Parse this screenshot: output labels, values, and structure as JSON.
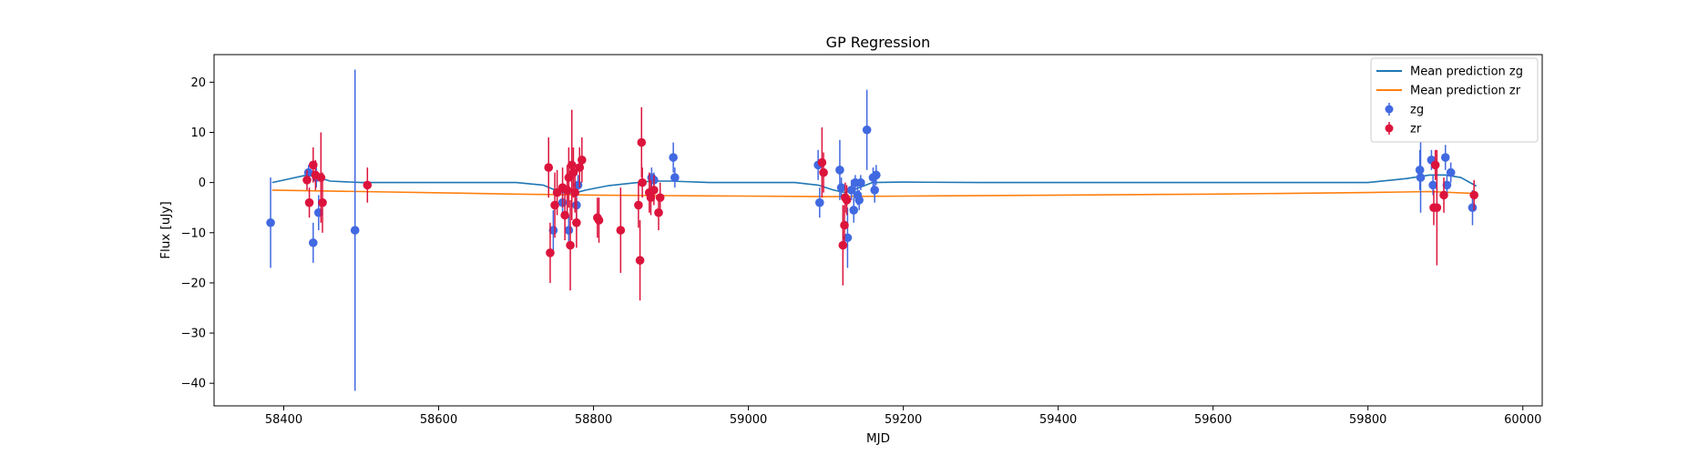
{
  "chart_data": {
    "type": "scatter",
    "title": "GP Regression",
    "xlabel": "MJD",
    "ylabel": "Flux [uJy]",
    "xlim": [
      58310,
      60025
    ],
    "ylim": [
      -44.5,
      25.5
    ],
    "xticks": [
      58400,
      58600,
      58800,
      59000,
      59200,
      59400,
      59600,
      59800,
      60000
    ],
    "yticks": [
      -40,
      -30,
      -20,
      -10,
      0,
      10,
      20
    ],
    "grid": false,
    "legend_position": "top-right",
    "legend": [
      "Mean prediction zg",
      "Mean prediction zr",
      "zg",
      "zr"
    ],
    "colors": {
      "line_zg": "#1f77b4",
      "line_zr": "#ff7f0e",
      "points_zg": "#4169e1",
      "points_zr": "#dc143c"
    },
    "lines": [
      {
        "name": "Mean prediction zg",
        "x": [
          58385,
          58400,
          58430,
          58445,
          58460,
          58500,
          58600,
          58700,
          58735,
          58755,
          58770,
          58790,
          58820,
          58850,
          58875,
          58900,
          58950,
          59000,
          59060,
          59090,
          59110,
          59125,
          59140,
          59160,
          59200,
          59300,
          59400,
          59500,
          59600,
          59700,
          59800,
          59850,
          59880,
          59900,
          59920,
          59940
        ],
        "y": [
          0.0,
          0.5,
          1.5,
          1.0,
          0.3,
          0.0,
          0.0,
          0.0,
          -0.5,
          -1.8,
          -2.3,
          -1.5,
          -0.6,
          -0.1,
          0.3,
          0.3,
          0.0,
          0.0,
          0.0,
          -0.5,
          -1.5,
          -2.0,
          -1.2,
          0.0,
          0.1,
          0.0,
          0.0,
          0.0,
          0.0,
          0.0,
          0.0,
          0.8,
          1.5,
          1.5,
          1.0,
          -0.7
        ]
      },
      {
        "name": "Mean prediction zr",
        "x": [
          58385,
          58500,
          58700,
          58800,
          58900,
          59000,
          59100,
          59200,
          59400,
          59600,
          59800,
          59880,
          59940
        ],
        "y": [
          -1.5,
          -1.8,
          -2.3,
          -2.5,
          -2.6,
          -2.7,
          -2.8,
          -2.7,
          -2.5,
          -2.3,
          -2.0,
          -1.8,
          -2.2
        ]
      }
    ],
    "series": [
      {
        "name": "zg",
        "points": [
          {
            "x": 58383,
            "y": -8.0,
            "err": 9.0
          },
          {
            "x": 58432,
            "y": 2.0,
            "err": 1.5
          },
          {
            "x": 58438,
            "y": -12.0,
            "err": 4.0
          },
          {
            "x": 58442,
            "y": 1.0,
            "err": 2.0
          },
          {
            "x": 58445,
            "y": -6.0,
            "err": 3.5
          },
          {
            "x": 58492,
            "y": -9.5,
            "err": 32.0
          },
          {
            "x": 58748,
            "y": -9.5,
            "err": 4.0
          },
          {
            "x": 58760,
            "y": -4.0,
            "err": 2.5
          },
          {
            "x": 58768,
            "y": -9.5,
            "err": 3.0
          },
          {
            "x": 58778,
            "y": -4.5,
            "err": 3.0
          },
          {
            "x": 58780,
            "y": -0.5,
            "err": 2.0
          },
          {
            "x": 58875,
            "y": 1.0,
            "err": 2.0
          },
          {
            "x": 58878,
            "y": 0.5,
            "err": 1.5
          },
          {
            "x": 58903,
            "y": 5.0,
            "err": 3.0
          },
          {
            "x": 58905,
            "y": 1.0,
            "err": 2.0
          },
          {
            "x": 59090,
            "y": 3.5,
            "err": 3.0
          },
          {
            "x": 59092,
            "y": -4.0,
            "err": 3.0
          },
          {
            "x": 59118,
            "y": 2.5,
            "err": 6.0
          },
          {
            "x": 59120,
            "y": -1.0,
            "err": 2.0
          },
          {
            "x": 59128,
            "y": -11.0,
            "err": 6.0
          },
          {
            "x": 59133,
            "y": -1.5,
            "err": 2.0
          },
          {
            "x": 59136,
            "y": -5.5,
            "err": 2.5
          },
          {
            "x": 59138,
            "y": 0.0,
            "err": 1.5
          },
          {
            "x": 59141,
            "y": -2.5,
            "err": 2.0
          },
          {
            "x": 59143,
            "y": -3.5,
            "err": 2.0
          },
          {
            "x": 59145,
            "y": 0.0,
            "err": 1.5
          },
          {
            "x": 59153,
            "y": 10.5,
            "err": 8.0
          },
          {
            "x": 59161,
            "y": 1.0,
            "err": 2.0
          },
          {
            "x": 59163,
            "y": -1.5,
            "err": 2.5
          },
          {
            "x": 59165,
            "y": 1.5,
            "err": 2.0
          },
          {
            "x": 59867,
            "y": 2.5,
            "err": 4.0
          },
          {
            "x": 59868,
            "y": 1.0,
            "err": 7.0
          },
          {
            "x": 59882,
            "y": 4.5,
            "err": 2.0
          },
          {
            "x": 59884,
            "y": -0.5,
            "err": 2.0
          },
          {
            "x": 59900,
            "y": 5.0,
            "err": 2.5
          },
          {
            "x": 59902,
            "y": -0.5,
            "err": 2.0
          },
          {
            "x": 59907,
            "y": 2.0,
            "err": 2.0
          },
          {
            "x": 59935,
            "y": -5.0,
            "err": 3.5
          }
        ]
      },
      {
        "name": "zr",
        "points": [
          {
            "x": 58430,
            "y": 0.5,
            "err": 2.0
          },
          {
            "x": 58433,
            "y": -4.0,
            "err": 3.0
          },
          {
            "x": 58438,
            "y": 3.5,
            "err": 3.5
          },
          {
            "x": 58441,
            "y": 1.5,
            "err": 3.0
          },
          {
            "x": 58448,
            "y": 1.0,
            "err": 9.0
          },
          {
            "x": 58450,
            "y": -4.0,
            "err": 6.0
          },
          {
            "x": 58508,
            "y": -0.5,
            "err": 3.5
          },
          {
            "x": 58742,
            "y": 3.0,
            "err": 6.0
          },
          {
            "x": 58744,
            "y": -14.0,
            "err": 6.0
          },
          {
            "x": 58750,
            "y": -4.5,
            "err": 6.5
          },
          {
            "x": 58753,
            "y": -2.0,
            "err": 4.5
          },
          {
            "x": 58760,
            "y": -1.0,
            "err": 4.0
          },
          {
            "x": 58763,
            "y": -6.5,
            "err": 5.0
          },
          {
            "x": 58766,
            "y": -1.5,
            "err": 5.0
          },
          {
            "x": 58768,
            "y": 1.0,
            "err": 6.0
          },
          {
            "x": 58770,
            "y": -12.5,
            "err": 9.0
          },
          {
            "x": 58772,
            "y": 3.5,
            "err": 11.0
          },
          {
            "x": 58774,
            "y": 2.0,
            "err": 5.0
          },
          {
            "x": 58776,
            "y": -2.0,
            "err": 4.0
          },
          {
            "x": 58778,
            "y": -8.0,
            "err": 5.0
          },
          {
            "x": 58782,
            "y": 3.0,
            "err": 4.0
          },
          {
            "x": 58785,
            "y": 4.5,
            "err": 4.5
          },
          {
            "x": 58805,
            "y": -7.0,
            "err": 4.0
          },
          {
            "x": 58807,
            "y": -7.5,
            "err": 4.5
          },
          {
            "x": 58835,
            "y": -9.5,
            "err": 8.5
          },
          {
            "x": 58858,
            "y": -4.5,
            "err": 4.5
          },
          {
            "x": 58860,
            "y": -15.5,
            "err": 8.0
          },
          {
            "x": 58862,
            "y": 8.0,
            "err": 7.0
          },
          {
            "x": 58863,
            "y": 0.0,
            "err": 3.0
          },
          {
            "x": 58872,
            "y": -2.0,
            "err": 4.0
          },
          {
            "x": 58874,
            "y": -3.0,
            "err": 3.5
          },
          {
            "x": 58878,
            "y": -1.5,
            "err": 3.0
          },
          {
            "x": 58884,
            "y": -6.0,
            "err": 3.5
          },
          {
            "x": 58886,
            "y": -3.0,
            "err": 3.0
          },
          {
            "x": 59095,
            "y": 4.0,
            "err": 7.0
          },
          {
            "x": 59097,
            "y": 2.0,
            "err": 4.0
          },
          {
            "x": 59122,
            "y": -12.5,
            "err": 8.0
          },
          {
            "x": 59124,
            "y": -8.5,
            "err": 4.0
          },
          {
            "x": 59125,
            "y": -3.0,
            "err": 3.0
          },
          {
            "x": 59127,
            "y": -3.5,
            "err": 3.0
          },
          {
            "x": 59885,
            "y": -5.0,
            "err": 3.5
          },
          {
            "x": 59887,
            "y": 3.5,
            "err": 3.0
          },
          {
            "x": 59889,
            "y": -5.0,
            "err": 11.5
          },
          {
            "x": 59898,
            "y": -2.5,
            "err": 3.5
          },
          {
            "x": 59937,
            "y": -2.5,
            "err": 3.0
          }
        ]
      }
    ]
  }
}
